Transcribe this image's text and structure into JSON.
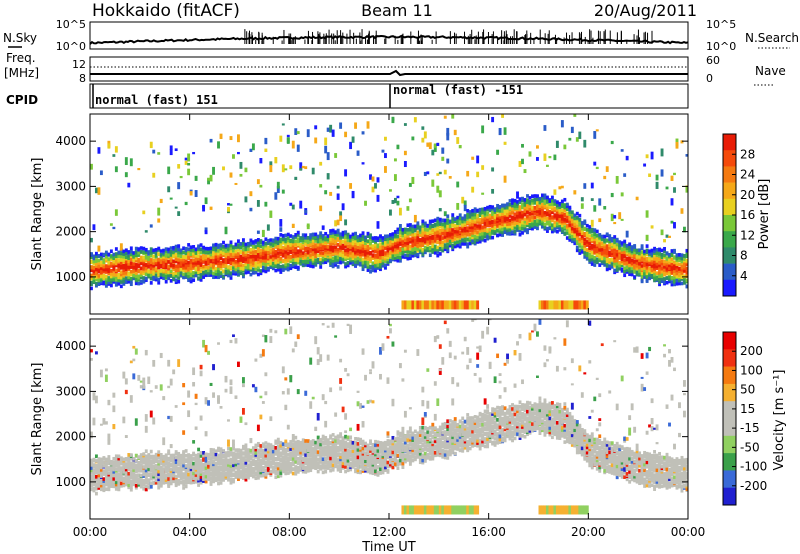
{
  "header": {
    "station": "Hokkaido (fitACF)",
    "beam": "Beam 11",
    "date": "20/Aug/2011"
  },
  "noise_panel": {
    "left_label": "N.Sky",
    "right_label": "N.Search",
    "left_ticks": [
      "10^5",
      "10^0"
    ],
    "right_ticks": [
      "10^5",
      "10^0"
    ]
  },
  "freq_panel": {
    "left_label_1": "Freq.",
    "left_label_2": "[MHz]",
    "left_ticks": [
      "12",
      "8"
    ],
    "right_label": "Nave",
    "right_ticks": [
      "60",
      "0"
    ]
  },
  "cpid_panel": {
    "label": "CPID",
    "segments": [
      {
        "label": "normal (fast) 151",
        "start_hour": 0,
        "end_hour": 12
      },
      {
        "label": "normal (fast) -151",
        "start_hour": 12,
        "end_hour": 24
      }
    ]
  },
  "chart_data": [
    {
      "type": "heatmap",
      "panel": "power",
      "ylabel": "Slant Range [km]",
      "ylim": [
        180,
        4600
      ],
      "yticks": [
        "1000",
        "2000",
        "3000",
        "4000"
      ],
      "xlim": [
        0,
        24
      ],
      "colorbar": {
        "label": "Power [dB]",
        "ticks": [
          "4",
          "8",
          "12",
          "16",
          "20",
          "24",
          "28"
        ],
        "colors": [
          "#1a1aff",
          "#2a5cc8",
          "#2f8a6a",
          "#3aa84a",
          "#7ac838",
          "#e8d020",
          "#f5a818",
          "#f57a10",
          "#f54a0a",
          "#e81c06"
        ]
      },
      "echo_bands": [
        {
          "from_hour": 0,
          "to_hour": 24,
          "ranges_km": [
            [
              900,
              1000
            ],
            [
              1000,
              1400
            ],
            [
              1100,
              1200
            ],
            [
              1400,
              1450
            ],
            [
              1300,
              1800
            ],
            [
              1500,
              2000
            ],
            [
              1700,
              2100
            ],
            [
              2000,
              2300
            ],
            [
              2200,
              2600
            ],
            [
              2400,
              2100
            ],
            [
              2000,
              1400
            ],
            [
              1400,
              1200
            ],
            [
              1200,
              1100
            ]
          ],
          "level": "strong"
        },
        {
          "from_hour": 3.5,
          "to_hour": 7.5,
          "ranges_km": [
            [
              2800,
              3000
            ],
            [
              2600,
              2800
            ]
          ],
          "level": "medium"
        },
        {
          "from_hour": 12.5,
          "to_hour": 15.5,
          "ranges_km": [
            [
              280,
              420
            ]
          ],
          "level": "medium"
        }
      ]
    },
    {
      "type": "heatmap",
      "panel": "velocity",
      "ylabel": "Slant Range [km]",
      "xlabel": "Time UT",
      "ylim": [
        180,
        4600
      ],
      "yticks": [
        "1000",
        "2000",
        "3000",
        "4000"
      ],
      "xlim": [
        0,
        24
      ],
      "xticks": [
        "00:00",
        "04:00",
        "08:00",
        "12:00",
        "16:00",
        "20:00",
        "00:00"
      ],
      "colorbar": {
        "label": "Velocity [m s⁻¹]",
        "ticks": [
          "200",
          "100",
          "50",
          "15",
          "-15",
          "-50",
          "-100",
          "-200"
        ],
        "colors": [
          "#2020d0",
          "#3a6ad8",
          "#3aa04a",
          "#90d060",
          "#c0c0b8",
          "#c0c0b8",
          "#f5b030",
          "#f57a10",
          "#f03010",
          "#e80000"
        ]
      }
    }
  ]
}
